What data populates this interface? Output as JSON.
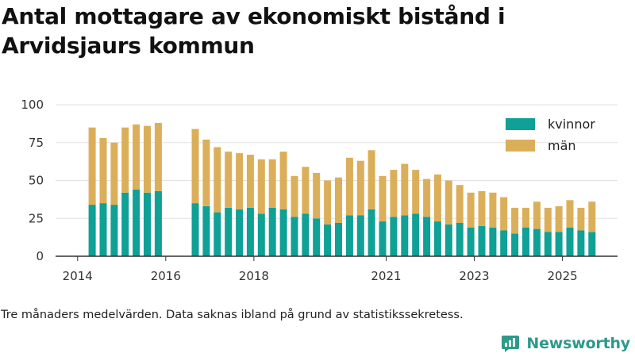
{
  "title_line1": "Antal mottagare av ekonomiskt bistånd i",
  "title_line2": "Arvidsjaurs kommun",
  "caption": "Tre månaders medelvärden. Data saknas ibland på grund av statistikssekretess.",
  "brand": "Newsworthy",
  "colors": {
    "kvinnor": "#0fa096",
    "man": "#dbaf5a",
    "axis": "#333333",
    "grid": "#e2e2e2",
    "brand": "#2d9a8a"
  },
  "chart_data": {
    "type": "bar",
    "stacked": true,
    "title": "Antal mottagare av ekonomiskt bistånd i Arvidsjaurs kommun",
    "xlabel": "",
    "ylabel": "",
    "ylim": [
      0,
      100
    ],
    "yticks": [
      0,
      25,
      50,
      75,
      100
    ],
    "xlim": [
      2013.5,
      2026.25
    ],
    "xticks": [
      {
        "value": 2014,
        "label": "2014"
      },
      {
        "value": 2016,
        "label": "2016"
      },
      {
        "value": 2018,
        "label": "2018"
      },
      {
        "value": 2021,
        "label": "2021"
      },
      {
        "value": 2023,
        "label": "2023"
      },
      {
        "value": 2025,
        "label": "2025"
      }
    ],
    "legend": {
      "position": "top-right",
      "entries": [
        "kvinnor",
        "män"
      ]
    },
    "x": [
      2014.33,
      2014.58,
      2014.83,
      2015.08,
      2015.33,
      2015.58,
      2015.83,
      2016.67,
      2016.92,
      2017.17,
      2017.42,
      2017.67,
      2017.92,
      2018.17,
      2018.42,
      2018.67,
      2018.92,
      2019.17,
      2019.42,
      2019.67,
      2019.92,
      2020.17,
      2020.42,
      2020.67,
      2020.92,
      2021.17,
      2021.42,
      2021.67,
      2021.92,
      2022.17,
      2022.42,
      2022.67,
      2022.92,
      2023.17,
      2023.42,
      2023.67,
      2023.92,
      2024.17,
      2024.42,
      2024.67,
      2024.92,
      2025.17,
      2025.42,
      2025.67
    ],
    "series": [
      {
        "name": "kvinnor",
        "values": [
          34,
          35,
          34,
          42,
          44,
          42,
          43,
          35,
          33,
          29,
          32,
          31,
          32,
          28,
          32,
          31,
          26,
          28,
          25,
          21,
          22,
          27,
          27,
          31,
          23,
          26,
          27,
          28,
          26,
          23,
          21,
          22,
          19,
          20,
          19,
          17,
          15,
          19,
          18,
          16,
          16,
          19,
          17,
          16
        ]
      },
      {
        "name": "män",
        "values": [
          51,
          43,
          41,
          43,
          43,
          44,
          45,
          49,
          44,
          43,
          37,
          37,
          35,
          36,
          32,
          38,
          27,
          31,
          30,
          29,
          30,
          38,
          36,
          39,
          30,
          31,
          34,
          29,
          25,
          31,
          29,
          25,
          23,
          23,
          23,
          22,
          17,
          13,
          18,
          16,
          17,
          18,
          15,
          20
        ]
      }
    ]
  }
}
